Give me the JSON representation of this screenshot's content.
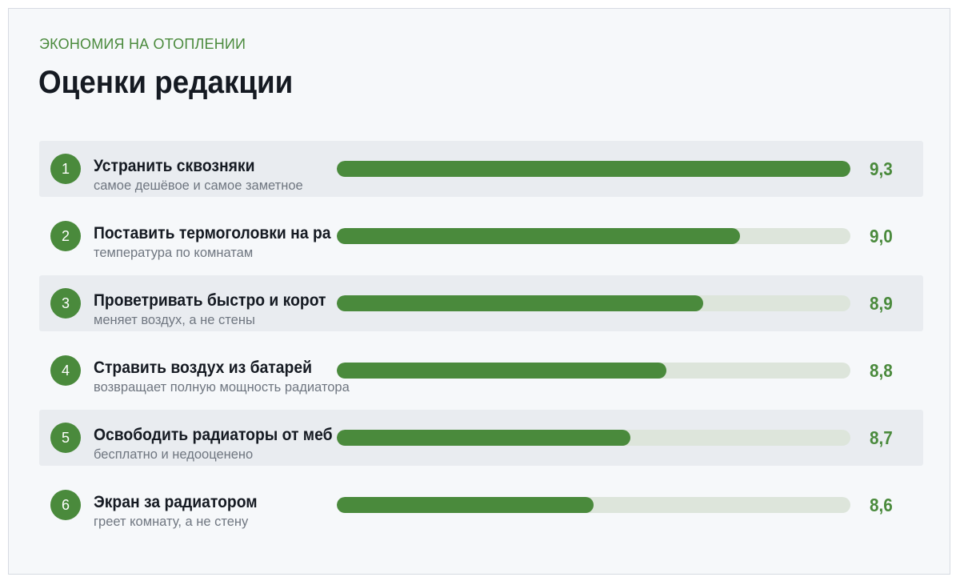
{
  "header": {
    "kicker": "ЭКОНОМИЯ НА ОТОПЛЕНИИ",
    "title": "Оценки редакции"
  },
  "colors": {
    "accent": "#4a8a3c",
    "track": "#dde5db",
    "row_shade": "#e9ecf0"
  },
  "chart_data": {
    "type": "bar",
    "orientation": "horizontal",
    "xlim": [
      0,
      10
    ],
    "categories": [
      "Устранить сквозняки",
      "Поставить термоголовки на ра",
      "Проветривать быстро и корот",
      "Стравить воздух из батарей",
      "Освободить радиаторы от меб",
      "Экран за радиатором"
    ],
    "values": [
      9.3,
      9.0,
      8.9,
      8.8,
      8.7,
      8.6
    ],
    "rows": [
      {
        "rank": "1",
        "label": "Устранить сквозняки",
        "sub": "самое дешёвое и самое заметное",
        "value": 9.3,
        "value_text": "9,3",
        "fill": 1.0
      },
      {
        "rank": "2",
        "label": "Поставить термоголовки на ра",
        "sub": "температура по комнатам",
        "value": 9.0,
        "value_text": "9,0",
        "fill": 0.785
      },
      {
        "rank": "3",
        "label": "Проветривать быстро и корот",
        "sub": "меняет воздух, а не стены",
        "value": 8.9,
        "value_text": "8,9",
        "fill": 0.714
      },
      {
        "rank": "4",
        "label": "Стравить воздух из батарей",
        "sub": "возвращает полную мощность радиатора",
        "value": 8.8,
        "value_text": "8,8",
        "fill": 0.642
      },
      {
        "rank": "5",
        "label": "Освободить радиаторы от меб",
        "sub": "бесплатно и недооценено",
        "value": 8.7,
        "value_text": "8,7",
        "fill": 0.571
      },
      {
        "rank": "6",
        "label": "Экран за радиатором",
        "sub": "греет комнату, а не стену",
        "value": 8.6,
        "value_text": "8,6",
        "fill": 0.5
      }
    ]
  }
}
